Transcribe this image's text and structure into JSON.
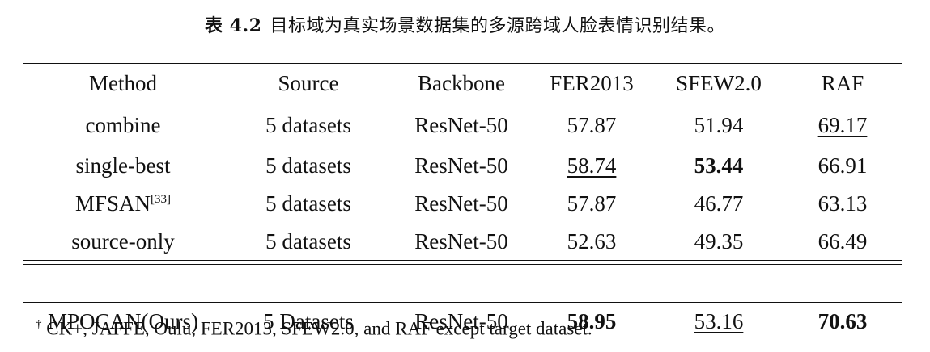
{
  "caption": {
    "label": "表 4.2",
    "text": "目标域为真实场景数据集的多源跨域人脸表情识别结果。"
  },
  "table": {
    "headers": [
      "Method",
      "Source",
      "Backbone",
      "FER2013",
      "SFEW2.0",
      "RAF"
    ],
    "rows": [
      {
        "method": "combine",
        "ref": "",
        "source": "5 datasets",
        "backbone": "ResNet-50",
        "fer2013": "57.87",
        "sfew": "51.94",
        "raf": "69.17"
      },
      {
        "method": "single-best",
        "ref": "",
        "source": "5 datasets",
        "backbone": "ResNet-50",
        "fer2013": "58.74",
        "sfew": "53.44",
        "raf": "66.91"
      },
      {
        "method": "MFSAN",
        "ref": "[33]",
        "source": "5 datasets",
        "backbone": "ResNet-50",
        "fer2013": "57.87",
        "sfew": "46.77",
        "raf": "63.13"
      },
      {
        "method": "source-only",
        "ref": "",
        "source": "5 datasets",
        "backbone": "ResNet-50",
        "fer2013": "52.63",
        "sfew": "49.35",
        "raf": "66.49"
      }
    ],
    "ours": {
      "method": "MPOCAN(Ours)",
      "source": "5 Datasets",
      "backbone": "ResNet-50",
      "fer2013": "58.95",
      "sfew": "53.16",
      "raf": "70.63"
    }
  },
  "footnote": {
    "mark": "†",
    "text": "CK+, JAFFE, Oulu, FER2013, SFEW2.0, and RAF except target dataset."
  }
}
